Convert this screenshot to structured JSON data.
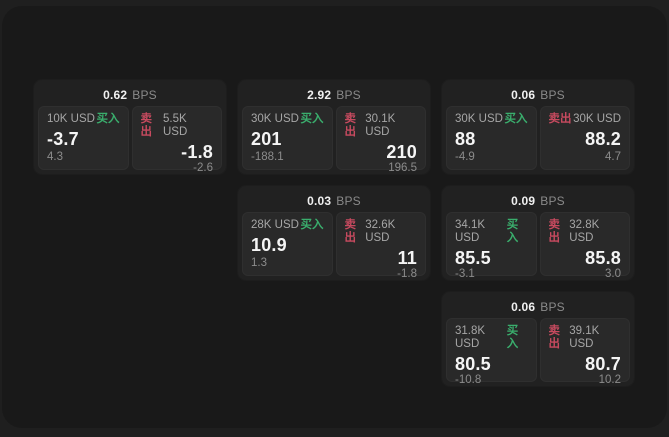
{
  "labels": {
    "bps_unit": "BPS",
    "buy": "买入",
    "sell": "卖出"
  },
  "colors": {
    "buy_green": "#3aae6d",
    "sell_red": "#c74a5f",
    "panel_bg": "#191919",
    "card_bg": "#212121",
    "cell_bg": "#292929"
  },
  "cards": [
    {
      "bps": "0.62",
      "buy": {
        "amount": "10K USD",
        "value": "-3.7",
        "delta": "4.3"
      },
      "sell": {
        "amount": "5.5K USD",
        "value": "-1.8",
        "delta": "-2.6"
      }
    },
    {
      "bps": "2.92",
      "buy": {
        "amount": "30K USD",
        "value": "201",
        "delta": "-188.1"
      },
      "sell": {
        "amount": "30.1K USD",
        "value": "210",
        "delta": "196.5"
      }
    },
    {
      "bps": "0.06",
      "buy": {
        "amount": "30K USD",
        "value": "88",
        "delta": "-4.9"
      },
      "sell": {
        "amount": "30K USD",
        "value": "88.2",
        "delta": "4.7"
      }
    },
    {
      "bps": "0.03",
      "buy": {
        "amount": "28K USD",
        "value": "10.9",
        "delta": "1.3"
      },
      "sell": {
        "amount": "32.6K USD",
        "value": "11",
        "delta": "-1.8"
      }
    },
    {
      "bps": "0.09",
      "buy": {
        "amount": "34.1K USD",
        "value": "85.5",
        "delta": "-3.1"
      },
      "sell": {
        "amount": "32.8K USD",
        "value": "85.8",
        "delta": "3.0"
      }
    },
    {
      "bps": "0.06",
      "buy": {
        "amount": "31.8K USD",
        "value": "80.5",
        "delta": "-10.8"
      },
      "sell": {
        "amount": "39.1K USD",
        "value": "80.7",
        "delta": "10.2"
      }
    }
  ]
}
